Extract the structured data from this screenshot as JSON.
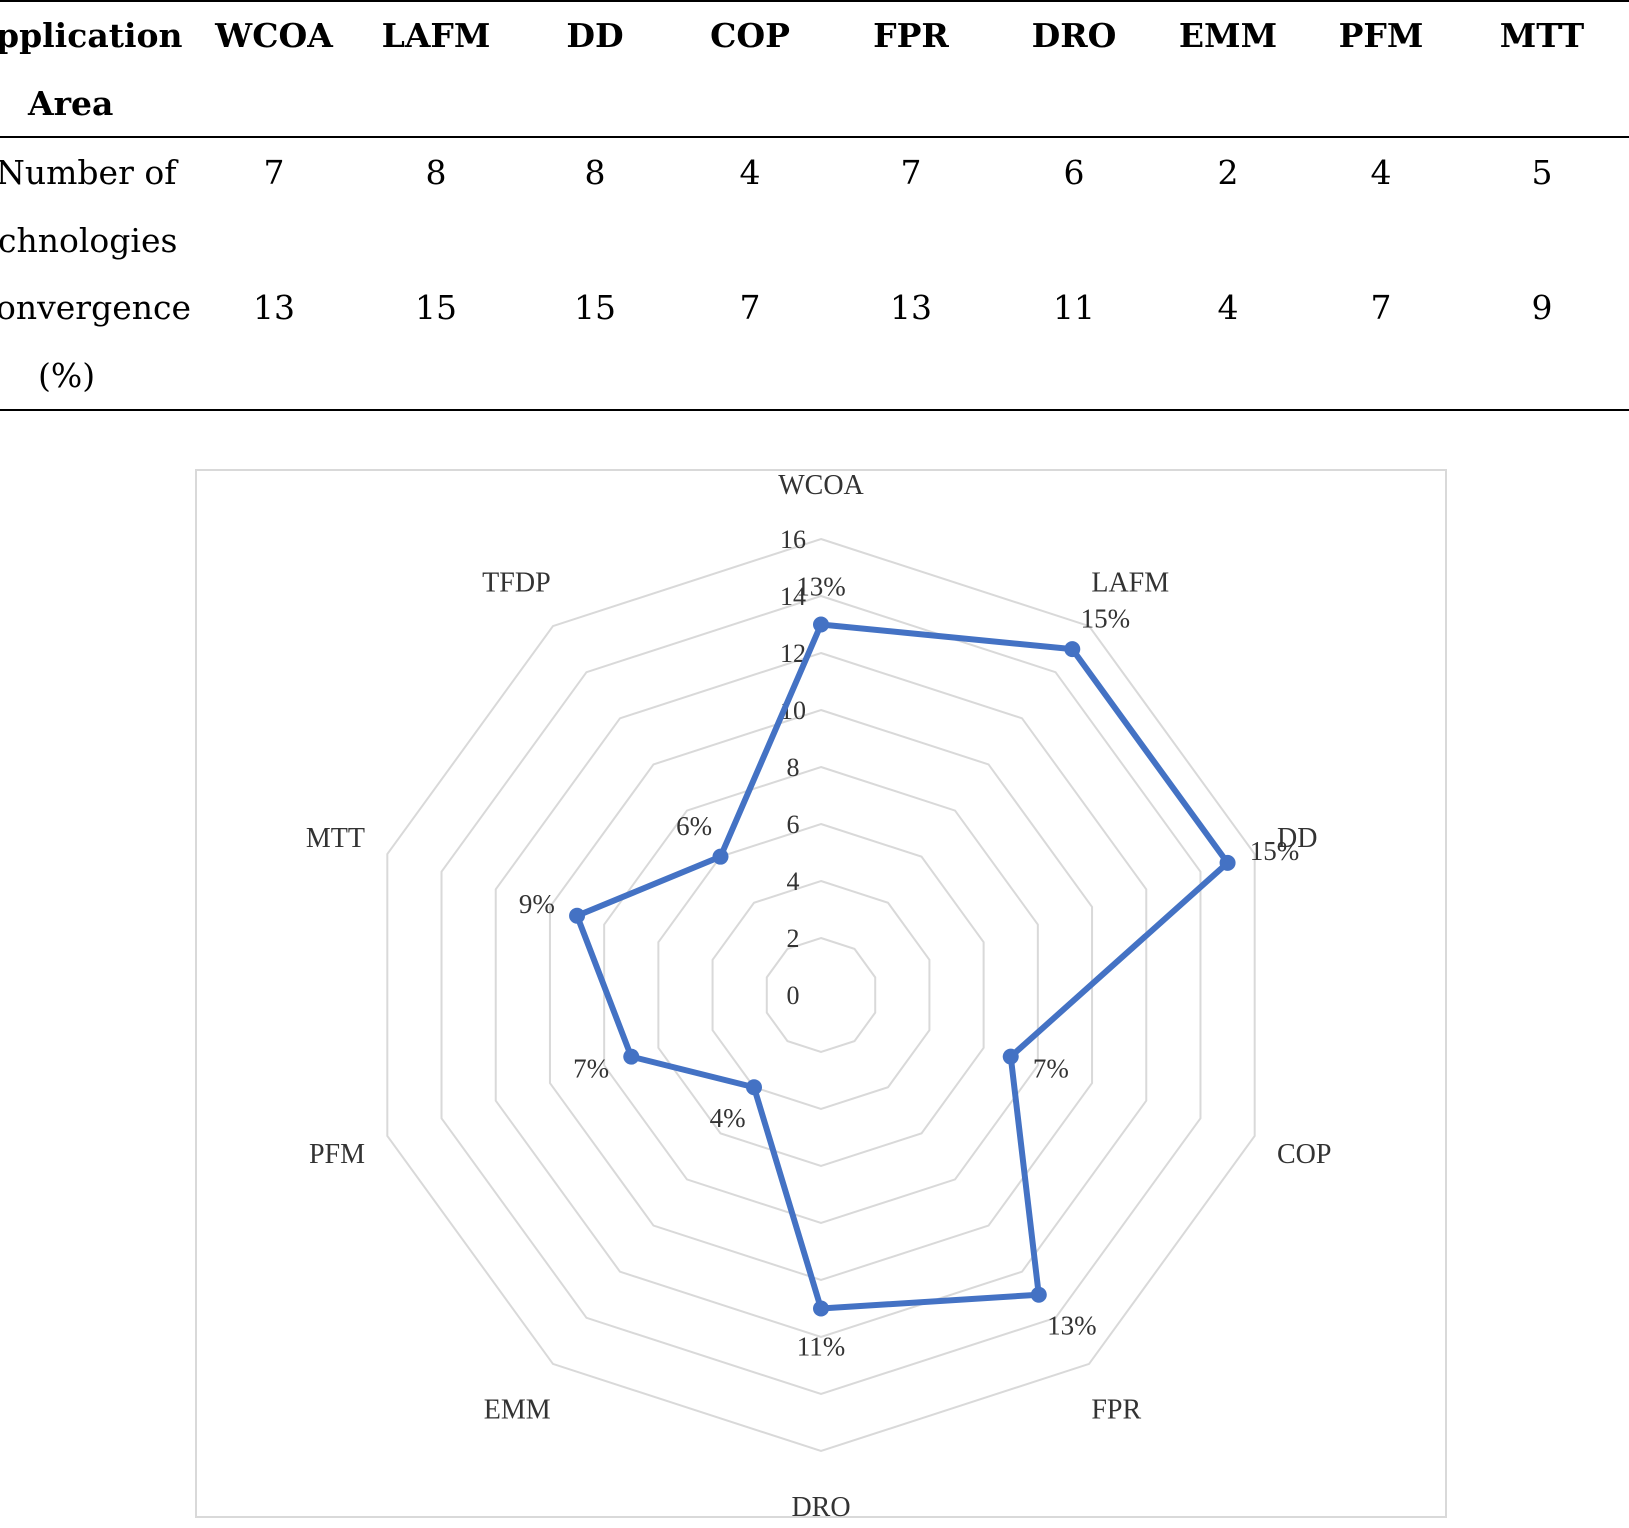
{
  "table": {
    "row_labels": {
      "application_area": [
        "pplication",
        "Area"
      ],
      "number_of_technologies": [
        "Number of",
        "chnologies"
      ],
      "convergence": [
        "onvergence",
        "(%)"
      ]
    },
    "columns": [
      "WCOA",
      "LAFM",
      "DD",
      "COP",
      "FPR",
      "DRO",
      "EMM",
      "PFM",
      "MTT"
    ],
    "number_of_technologies": [
      "7",
      "8",
      "8",
      "4",
      "7",
      "6",
      "2",
      "4",
      "5"
    ],
    "convergence": [
      "13",
      "15",
      "15",
      "7",
      "13",
      "11",
      "4",
      "7",
      "9"
    ]
  },
  "chart_data": {
    "type": "radar",
    "categories": [
      "WCOA",
      "LAFM",
      "DD",
      "COP",
      "FPR",
      "DRO",
      "EMM",
      "PFM",
      "MTT",
      "TFDP"
    ],
    "values": [
      13,
      15,
      15,
      7,
      13,
      11,
      4,
      7,
      9,
      6
    ],
    "data_labels": [
      "13%",
      "15%",
      "15%",
      "7%",
      "13%",
      "11%",
      "4%",
      "7%",
      "9%",
      "6%"
    ],
    "rlim": [
      0,
      16
    ],
    "ticks": [
      "0",
      "2",
      "4",
      "6",
      "8",
      "10",
      "12",
      "14",
      "16"
    ],
    "grid": true,
    "line_color": "#4472c4",
    "grid_color": "#d9d9d9"
  }
}
